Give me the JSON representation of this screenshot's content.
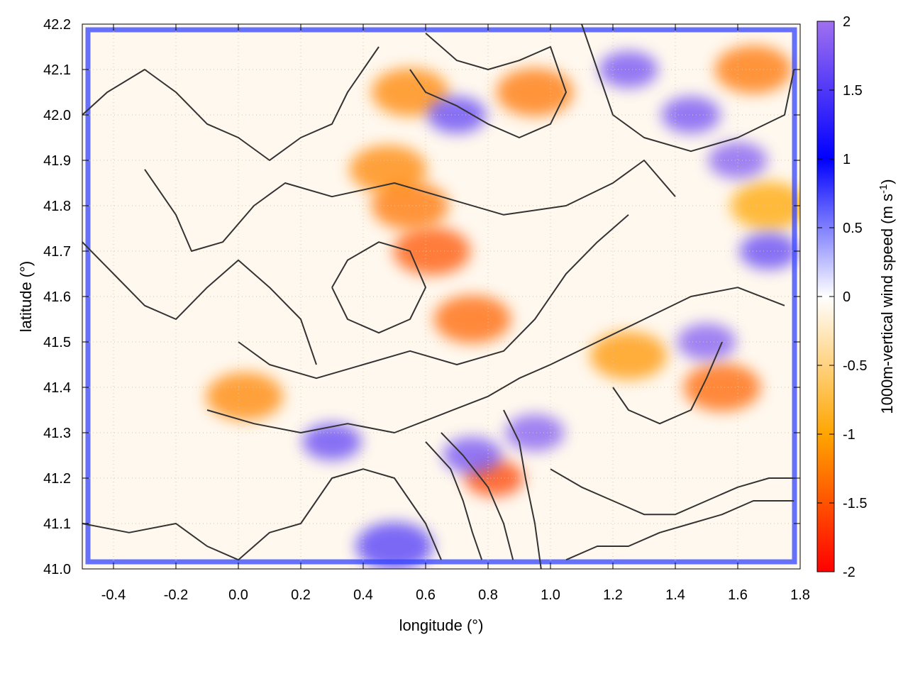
{
  "chart_data": {
    "type": "heatmap",
    "title": "",
    "xlabel": "longitude (°)",
    "ylabel": "latitude (°)",
    "colorbar_label": "1000m-vertical wind speed (m s-1)",
    "colorbar_label_parts": {
      "main": "1000m-vertical wind speed (m s",
      "sup": "-1",
      "close": ")"
    },
    "xlim": [
      -0.5,
      1.8
    ],
    "ylim": [
      41.0,
      42.2
    ],
    "clim": [
      -2,
      2
    ],
    "x_ticks": [
      -0.4,
      -0.2,
      0.0,
      0.2,
      0.4,
      0.6,
      0.8,
      1.0,
      1.2,
      1.4,
      1.6,
      1.8
    ],
    "x_tick_labels": [
      "-0.4",
      "-0.2",
      "0.0",
      "0.2",
      "0.4",
      "0.6",
      "0.8",
      "1.0",
      "1.2",
      "1.4",
      "1.6",
      "1.8"
    ],
    "y_ticks": [
      41.0,
      41.1,
      41.2,
      41.3,
      41.4,
      41.5,
      41.6,
      41.7,
      41.8,
      41.9,
      42.0,
      42.1,
      42.2
    ],
    "y_tick_labels": [
      "41.0",
      "41.1",
      "41.2",
      "41.3",
      "41.4",
      "41.5",
      "41.6",
      "41.7",
      "41.8",
      "41.9",
      "42.0",
      "42.1",
      "42.2"
    ],
    "colorbar_ticks": [
      2,
      1.5,
      1,
      0.5,
      0,
      -0.5,
      -1,
      -1.5,
      -2
    ],
    "colorbar_tick_labels": [
      "2",
      "1.5",
      "1",
      "0.5",
      "0",
      "-0.5",
      "-1",
      "-1.5",
      "-2"
    ],
    "colorscale": [
      {
        "value": -2.0,
        "color": "#ff0000"
      },
      {
        "value": -1.0,
        "color": "#ffa500"
      },
      {
        "value": 0.0,
        "color": "#ffffff"
      },
      {
        "value": 1.0,
        "color": "#0000ff"
      },
      {
        "value": 2.0,
        "color": "#a070f0"
      }
    ],
    "grid": true,
    "contour_color": "#333333",
    "features": [
      {
        "kind": "updraft",
        "lon": 0.62,
        "lat": 41.7,
        "w": -1.5
      },
      {
        "kind": "updraft",
        "lon": 0.55,
        "lat": 41.8,
        "w": -1.3
      },
      {
        "kind": "updraft",
        "lon": 0.48,
        "lat": 41.88,
        "w": -1.2
      },
      {
        "kind": "updraft",
        "lon": 0.75,
        "lat": 41.55,
        "w": -1.4
      },
      {
        "kind": "updraft",
        "lon": 0.82,
        "lat": 41.2,
        "w": -1.6
      },
      {
        "kind": "updraft",
        "lon": 0.55,
        "lat": 42.05,
        "w": -1.2
      },
      {
        "kind": "updraft",
        "lon": 0.95,
        "lat": 42.05,
        "w": -1.3
      },
      {
        "kind": "updraft",
        "lon": 1.25,
        "lat": 41.47,
        "w": -1.1
      },
      {
        "kind": "updraft",
        "lon": 1.55,
        "lat": 41.4,
        "w": -1.4
      },
      {
        "kind": "updraft",
        "lon": 0.02,
        "lat": 41.38,
        "w": -1.2
      },
      {
        "kind": "updraft",
        "lon": 1.65,
        "lat": 42.1,
        "w": -1.3
      },
      {
        "kind": "updraft",
        "lon": 1.7,
        "lat": 41.8,
        "w": -1.0
      },
      {
        "kind": "downdraft",
        "lon": 1.45,
        "lat": 42.0,
        "w": 1.7
      },
      {
        "kind": "downdraft",
        "lon": 1.6,
        "lat": 41.9,
        "w": 1.8
      },
      {
        "kind": "downdraft",
        "lon": 1.5,
        "lat": 41.5,
        "w": 1.8
      },
      {
        "kind": "downdraft",
        "lon": 1.7,
        "lat": 41.7,
        "w": 1.6
      },
      {
        "kind": "downdraft",
        "lon": 0.95,
        "lat": 41.3,
        "w": 1.8
      },
      {
        "kind": "downdraft",
        "lon": 0.75,
        "lat": 41.25,
        "w": 1.7
      },
      {
        "kind": "downdraft",
        "lon": 0.3,
        "lat": 41.28,
        "w": 1.6
      },
      {
        "kind": "downdraft",
        "lon": 1.25,
        "lat": 42.1,
        "w": 1.7
      },
      {
        "kind": "downdraft",
        "lon": 0.7,
        "lat": 42.0,
        "w": 1.6
      },
      {
        "kind": "downdraft",
        "lon": 0.5,
        "lat": 41.05,
        "w": 1.5
      }
    ],
    "contours": [
      [
        [
          -0.5,
          42.0
        ],
        [
          -0.42,
          42.05
        ],
        [
          -0.3,
          42.1
        ],
        [
          -0.2,
          42.05
        ],
        [
          -0.1,
          41.98
        ],
        [
          0.0,
          41.95
        ],
        [
          0.1,
          41.9
        ],
        [
          0.2,
          41.95
        ],
        [
          0.3,
          41.98
        ],
        [
          0.35,
          42.05
        ],
        [
          0.45,
          42.15
        ]
      ],
      [
        [
          -0.3,
          41.88
        ],
        [
          -0.2,
          41.78
        ],
        [
          -0.15,
          41.7
        ],
        [
          -0.05,
          41.72
        ],
        [
          0.05,
          41.8
        ],
        [
          0.15,
          41.85
        ],
        [
          0.3,
          41.82
        ],
        [
          0.5,
          41.85
        ],
        [
          0.65,
          41.82
        ],
        [
          0.85,
          41.78
        ],
        [
          1.05,
          41.8
        ],
        [
          1.2,
          41.85
        ],
        [
          1.3,
          41.9
        ],
        [
          1.4,
          41.82
        ]
      ],
      [
        [
          -0.5,
          41.72
        ],
        [
          -0.4,
          41.65
        ],
        [
          -0.3,
          41.58
        ],
        [
          -0.2,
          41.55
        ],
        [
          -0.1,
          41.62
        ],
        [
          0.0,
          41.68
        ],
        [
          0.1,
          41.62
        ],
        [
          0.2,
          41.55
        ],
        [
          0.25,
          41.45
        ]
      ],
      [
        [
          0.0,
          41.5
        ],
        [
          0.1,
          41.45
        ],
        [
          0.25,
          41.42
        ],
        [
          0.4,
          41.45
        ],
        [
          0.55,
          41.48
        ],
        [
          0.7,
          41.45
        ],
        [
          0.85,
          41.48
        ],
        [
          0.95,
          41.55
        ],
        [
          1.05,
          41.65
        ],
        [
          1.15,
          41.72
        ],
        [
          1.25,
          41.78
        ]
      ],
      [
        [
          -0.1,
          41.35
        ],
        [
          0.05,
          41.32
        ],
        [
          0.2,
          41.3
        ],
        [
          0.35,
          41.32
        ],
        [
          0.5,
          41.3
        ],
        [
          0.65,
          41.34
        ],
        [
          0.8,
          41.38
        ],
        [
          0.9,
          41.42
        ],
        [
          1.0,
          41.45
        ],
        [
          1.15,
          41.5
        ],
        [
          1.3,
          41.55
        ],
        [
          1.45,
          41.6
        ],
        [
          1.6,
          41.62
        ],
        [
          1.75,
          41.58
        ]
      ],
      [
        [
          -0.5,
          41.1
        ],
        [
          -0.35,
          41.08
        ],
        [
          -0.2,
          41.1
        ],
        [
          -0.1,
          41.05
        ],
        [
          0.0,
          41.02
        ],
        [
          0.1,
          41.08
        ],
        [
          0.2,
          41.1
        ],
        [
          0.3,
          41.2
        ],
        [
          0.4,
          41.22
        ],
        [
          0.5,
          41.2
        ],
        [
          0.55,
          41.15
        ],
        [
          0.6,
          41.1
        ],
        [
          0.65,
          41.02
        ]
      ],
      [
        [
          0.6,
          41.28
        ],
        [
          0.68,
          41.22
        ],
        [
          0.72,
          41.15
        ],
        [
          0.75,
          41.08
        ],
        [
          0.78,
          41.02
        ]
      ],
      [
        [
          0.65,
          41.3
        ],
        [
          0.72,
          41.25
        ],
        [
          0.8,
          41.18
        ],
        [
          0.85,
          41.1
        ],
        [
          0.88,
          41.02
        ]
      ],
      [
        [
          0.85,
          41.35
        ],
        [
          0.9,
          41.28
        ],
        [
          0.92,
          41.2
        ],
        [
          0.95,
          41.1
        ],
        [
          0.97,
          41.0
        ]
      ],
      [
        [
          1.0,
          41.22
        ],
        [
          1.1,
          41.18
        ],
        [
          1.2,
          41.15
        ],
        [
          1.3,
          41.12
        ],
        [
          1.4,
          41.12
        ],
        [
          1.5,
          41.15
        ],
        [
          1.6,
          41.18
        ],
        [
          1.7,
          41.2
        ],
        [
          1.78,
          41.2
        ]
      ],
      [
        [
          1.05,
          41.02
        ],
        [
          1.15,
          41.05
        ],
        [
          1.25,
          41.05
        ],
        [
          1.35,
          41.08
        ],
        [
          1.45,
          41.1
        ],
        [
          1.55,
          41.12
        ],
        [
          1.65,
          41.15
        ],
        [
          1.78,
          41.15
        ]
      ],
      [
        [
          0.6,
          42.18
        ],
        [
          0.7,
          42.12
        ],
        [
          0.8,
          42.1
        ],
        [
          0.9,
          42.12
        ],
        [
          1.0,
          42.15
        ],
        [
          1.05,
          42.05
        ],
        [
          1.0,
          41.98
        ],
        [
          0.9,
          41.95
        ],
        [
          0.8,
          41.98
        ],
        [
          0.7,
          42.02
        ],
        [
          0.6,
          42.05
        ],
        [
          0.55,
          42.1
        ]
      ],
      [
        [
          1.1,
          42.2
        ],
        [
          1.15,
          42.1
        ],
        [
          1.2,
          42.0
        ],
        [
          1.3,
          41.95
        ],
        [
          1.45,
          41.92
        ],
        [
          1.6,
          41.95
        ],
        [
          1.75,
          42.0
        ],
        [
          1.78,
          42.1
        ]
      ],
      [
        [
          1.2,
          41.4
        ],
        [
          1.25,
          41.35
        ],
        [
          1.35,
          41.32
        ],
        [
          1.45,
          41.35
        ],
        [
          1.5,
          41.42
        ],
        [
          1.55,
          41.5
        ]
      ],
      [
        [
          0.3,
          41.62
        ],
        [
          0.35,
          41.55
        ],
        [
          0.45,
          41.52
        ],
        [
          0.55,
          41.55
        ],
        [
          0.6,
          41.62
        ],
        [
          0.55,
          41.7
        ],
        [
          0.45,
          41.72
        ],
        [
          0.35,
          41.68
        ],
        [
          0.3,
          41.62
        ]
      ]
    ]
  }
}
